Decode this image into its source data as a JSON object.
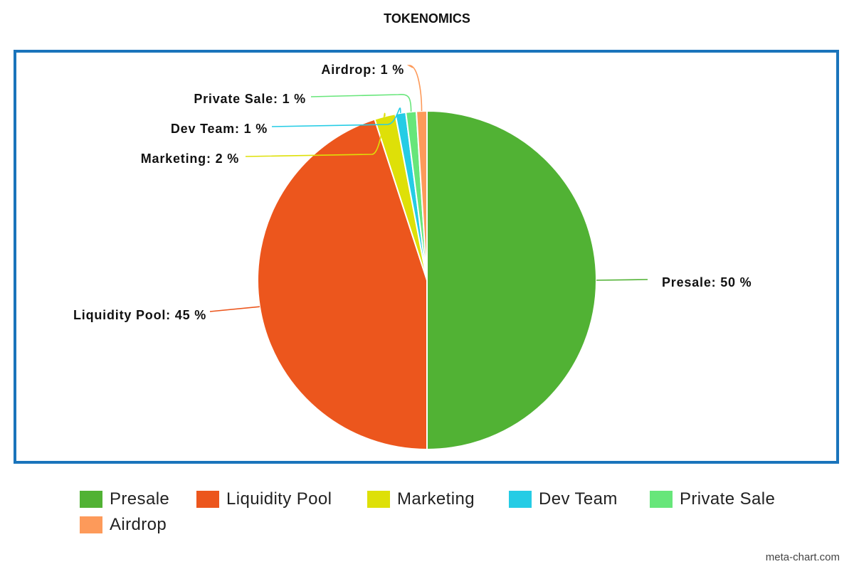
{
  "chart_data": {
    "type": "pie",
    "title": "TOKENOMICS",
    "slices": [
      {
        "name": "Presale",
        "value": 50,
        "label": "Presale: 50 %",
        "color": "#51b234"
      },
      {
        "name": "Liquidity Pool",
        "value": 45,
        "label": "Liquidity Pool: 45 %",
        "color": "#ec561d"
      },
      {
        "name": "Marketing",
        "value": 2,
        "label": "Marketing: 2 %",
        "color": "#dee008"
      },
      {
        "name": "Dev Team",
        "value": 1,
        "label": "Dev Team: 1 %",
        "color": "#25cce5"
      },
      {
        "name": "Private Sale",
        "value": 1,
        "label": "Private Sale: 1 %",
        "color": "#67e67a"
      },
      {
        "name": "Airdrop",
        "value": 1,
        "label": "Airdrop: 1 %",
        "color": "#fd9a5a"
      }
    ],
    "legend_placement": "bottom",
    "frame_color": "#1a74bb"
  },
  "watermark": "meta-chart.com"
}
